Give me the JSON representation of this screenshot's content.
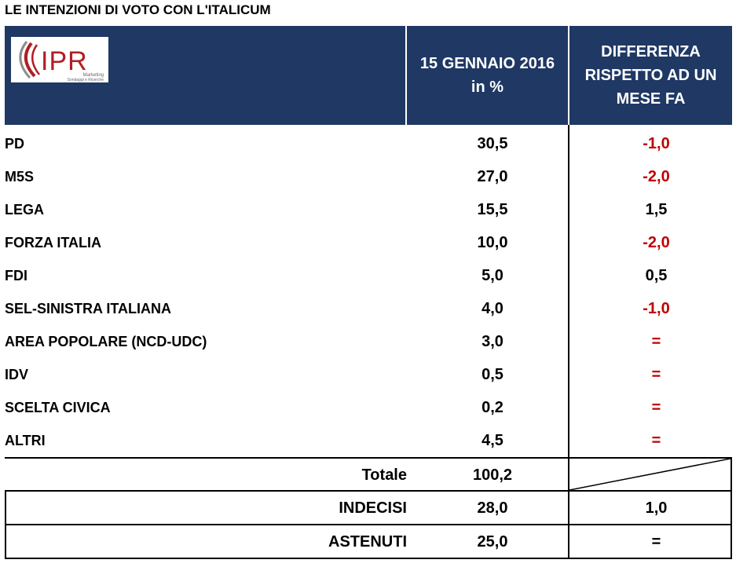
{
  "title": "LE INTENZIONI DI VOTO CON L'ITALICUM",
  "header": {
    "logo_text": "IPR",
    "logo_sub1": "Marketing",
    "logo_sub2": "Sondaggi e Ricerche",
    "col_date_line1": "15 GENNAIO 2016",
    "col_date_line2": "in %",
    "col_diff_line1": "DIFFERENZA",
    "col_diff_line2": "RISPETTO AD UN",
    "col_diff_line3": "MESE FA"
  },
  "colors": {
    "header_bg": "#1f3864",
    "negative": "#c00000",
    "logo_red": "#b01e23",
    "logo_grey": "#8c8c8c"
  },
  "chart_data": {
    "type": "table",
    "title": "LE INTENZIONI DI VOTO CON L'ITALICUM",
    "columns": [
      "",
      "15 GENNAIO 2016 in %",
      "DIFFERENZA RISPETTO AD UN MESE FA"
    ],
    "rows": [
      {
        "party": "PD",
        "value": "30,5",
        "diff": "-1,0"
      },
      {
        "party": "M5S",
        "value": "27,0",
        "diff": "-2,0"
      },
      {
        "party": "LEGA",
        "value": "15,5",
        "diff": "1,5"
      },
      {
        "party": "FORZA ITALIA",
        "value": "10,0",
        "diff": "-2,0"
      },
      {
        "party": "FDI",
        "value": "5,0",
        "diff": "0,5"
      },
      {
        "party": "SEL-SINISTRA ITALIANA",
        "value": "4,0",
        "diff": "-1,0"
      },
      {
        "party": "AREA POPOLARE (NCD-UDC)",
        "value": "3,0",
        "diff": "="
      },
      {
        "party": "IDV",
        "value": "0,5",
        "diff": "="
      },
      {
        "party": "SCELTA CIVICA",
        "value": "0,2",
        "diff": "="
      },
      {
        "party": "ALTRI",
        "value": "4,5",
        "diff": "="
      }
    ],
    "totale": {
      "label": "Totale",
      "value": "100,2"
    },
    "indecisi": {
      "label": "INDECISI",
      "value": "28,0",
      "diff": "1,0"
    },
    "astenuti": {
      "label": "ASTENUTI",
      "value": "25,0",
      "diff": "="
    }
  }
}
